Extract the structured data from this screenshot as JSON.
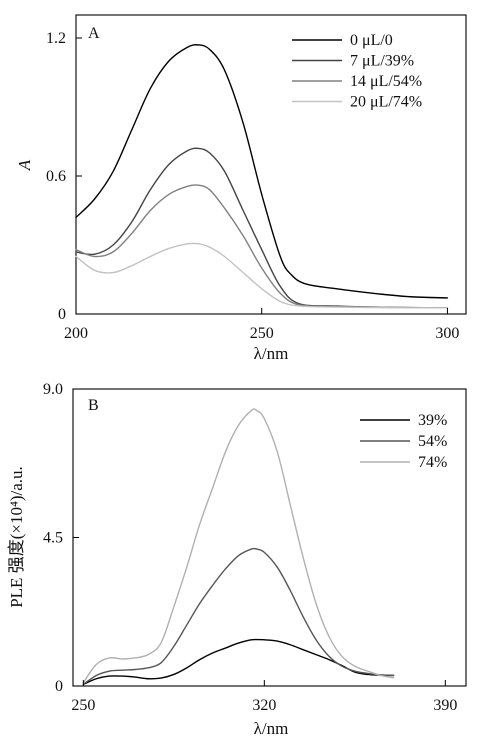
{
  "chart_data": [
    {
      "panel": "A",
      "type": "line",
      "xlabel": "λ/nm",
      "ylabel": "A",
      "xlim": [
        200,
        305
      ],
      "ylim": [
        0,
        1.3
      ],
      "x_ticks": [
        "200",
        "250",
        "300"
      ],
      "y_ticks": [
        "0",
        "0.6",
        "1.2"
      ],
      "legend_position": "top-right",
      "series": [
        {
          "name": "0 μL/0",
          "color": "#000000",
          "points": [
            [
              200,
              0.42
            ],
            [
              205,
              0.5
            ],
            [
              210,
              0.62
            ],
            [
              215,
              0.8
            ],
            [
              220,
              0.98
            ],
            [
              225,
              1.1
            ],
            [
              230,
              1.16
            ],
            [
              233,
              1.17
            ],
            [
              236,
              1.15
            ],
            [
              240,
              1.06
            ],
            [
              245,
              0.83
            ],
            [
              250,
              0.52
            ],
            [
              255,
              0.25
            ],
            [
              258,
              0.17
            ],
            [
              262,
              0.13
            ],
            [
              270,
              0.11
            ],
            [
              280,
              0.09
            ],
            [
              290,
              0.075
            ],
            [
              300,
              0.07
            ]
          ]
        },
        {
          "name": "7 μL/39%",
          "color": "#444444",
          "points": [
            [
              200,
              0.27
            ],
            [
              205,
              0.26
            ],
            [
              210,
              0.3
            ],
            [
              215,
              0.4
            ],
            [
              220,
              0.54
            ],
            [
              225,
              0.65
            ],
            [
              230,
              0.71
            ],
            [
              233,
              0.72
            ],
            [
              236,
              0.7
            ],
            [
              240,
              0.62
            ],
            [
              245,
              0.45
            ],
            [
              250,
              0.28
            ],
            [
              255,
              0.12
            ],
            [
              260,
              0.045
            ],
            [
              270,
              0.035
            ],
            [
              280,
              0.03
            ],
            [
              290,
              0.028
            ],
            [
              300,
              0.027
            ]
          ]
        },
        {
          "name": "14 μL/54%",
          "color": "#808080",
          "points": [
            [
              200,
              0.28
            ],
            [
              205,
              0.25
            ],
            [
              210,
              0.27
            ],
            [
              215,
              0.35
            ],
            [
              220,
              0.45
            ],
            [
              225,
              0.52
            ],
            [
              230,
              0.555
            ],
            [
              233,
              0.56
            ],
            [
              236,
              0.54
            ],
            [
              240,
              0.46
            ],
            [
              245,
              0.34
            ],
            [
              250,
              0.2
            ],
            [
              255,
              0.09
            ],
            [
              260,
              0.04
            ],
            [
              270,
              0.033
            ],
            [
              280,
              0.03
            ],
            [
              290,
              0.028
            ],
            [
              300,
              0.027
            ]
          ]
        },
        {
          "name": "20 μL/74%",
          "color": "#c2c2c2",
          "points": [
            [
              200,
              0.25
            ],
            [
              205,
              0.19
            ],
            [
              210,
              0.18
            ],
            [
              215,
              0.21
            ],
            [
              220,
              0.25
            ],
            [
              225,
              0.285
            ],
            [
              230,
              0.305
            ],
            [
              233,
              0.305
            ],
            [
              236,
              0.29
            ],
            [
              240,
              0.25
            ],
            [
              245,
              0.18
            ],
            [
              250,
              0.11
            ],
            [
              255,
              0.055
            ],
            [
              260,
              0.035
            ],
            [
              270,
              0.03
            ],
            [
              280,
              0.028
            ],
            [
              290,
              0.027
            ],
            [
              300,
              0.027
            ]
          ]
        }
      ]
    },
    {
      "panel": "B",
      "type": "line",
      "xlabel": "λ/nm",
      "ylabel": "PLE 强度(×10⁴)/a.u.",
      "xlim": [
        246,
        398
      ],
      "ylim": [
        0,
        9.0
      ],
      "x_ticks": [
        "250",
        "320",
        "390"
      ],
      "y_ticks": [
        "0",
        "4.5",
        "9.0"
      ],
      "legend_position": "top-right",
      "series": [
        {
          "name": "39%",
          "color": "#000000",
          "points": [
            [
              250,
              0.05
            ],
            [
              255,
              0.22
            ],
            [
              260,
              0.3
            ],
            [
              265,
              0.3
            ],
            [
              270,
              0.27
            ],
            [
              275,
              0.22
            ],
            [
              280,
              0.24
            ],
            [
              285,
              0.35
            ],
            [
              290,
              0.55
            ],
            [
              295,
              0.8
            ],
            [
              300,
              1.0
            ],
            [
              305,
              1.15
            ],
            [
              310,
              1.3
            ],
            [
              315,
              1.4
            ],
            [
              320,
              1.4
            ],
            [
              325,
              1.36
            ],
            [
              330,
              1.25
            ],
            [
              335,
              1.1
            ],
            [
              340,
              0.95
            ],
            [
              345,
              0.8
            ],
            [
              350,
              0.62
            ],
            [
              355,
              0.42
            ],
            [
              360,
              0.35
            ],
            [
              365,
              0.33
            ],
            [
              370,
              0.32
            ]
          ]
        },
        {
          "name": "54%",
          "color": "#555555",
          "points": [
            [
              250,
              0.05
            ],
            [
              255,
              0.32
            ],
            [
              260,
              0.45
            ],
            [
              265,
              0.48
            ],
            [
              270,
              0.5
            ],
            [
              275,
              0.55
            ],
            [
              280,
              0.7
            ],
            [
              285,
              1.2
            ],
            [
              290,
              1.85
            ],
            [
              295,
              2.5
            ],
            [
              300,
              3.05
            ],
            [
              305,
              3.55
            ],
            [
              310,
              3.95
            ],
            [
              315,
              4.15
            ],
            [
              317,
              4.15
            ],
            [
              320,
              4.05
            ],
            [
              325,
              3.6
            ],
            [
              330,
              2.9
            ],
            [
              335,
              2.1
            ],
            [
              340,
              1.4
            ],
            [
              345,
              0.9
            ],
            [
              350,
              0.6
            ],
            [
              355,
              0.45
            ],
            [
              360,
              0.38
            ],
            [
              365,
              0.34
            ],
            [
              370,
              0.32
            ]
          ]
        },
        {
          "name": "74%",
          "color": "#b0b0b0",
          "points": [
            [
              250,
              0.1
            ],
            [
              255,
              0.65
            ],
            [
              260,
              0.85
            ],
            [
              265,
              0.82
            ],
            [
              270,
              0.85
            ],
            [
              275,
              0.95
            ],
            [
              280,
              1.3
            ],
            [
              285,
              2.4
            ],
            [
              290,
              3.6
            ],
            [
              295,
              4.9
            ],
            [
              300,
              6.0
            ],
            [
              305,
              7.1
            ],
            [
              310,
              7.9
            ],
            [
              315,
              8.35
            ],
            [
              317,
              8.35
            ],
            [
              320,
              8.1
            ],
            [
              325,
              7.1
            ],
            [
              330,
              5.5
            ],
            [
              335,
              3.9
            ],
            [
              340,
              2.5
            ],
            [
              345,
              1.5
            ],
            [
              350,
              0.9
            ],
            [
              355,
              0.6
            ],
            [
              360,
              0.45
            ],
            [
              365,
              0.32
            ],
            [
              370,
              0.25
            ]
          ]
        }
      ]
    }
  ]
}
